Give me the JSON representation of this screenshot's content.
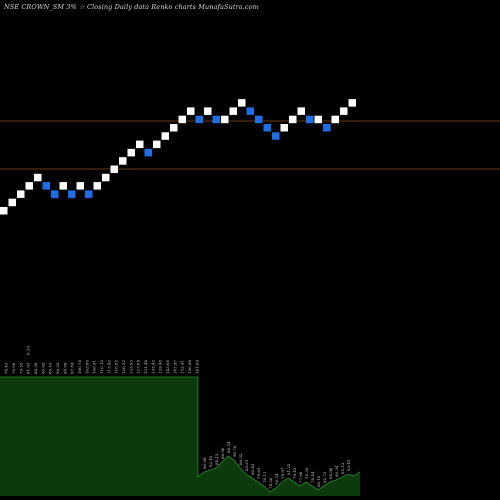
{
  "chart_data": [
    {
      "type": "renko",
      "title": "NSE CROWN_SM 3% ☆ Closing Daily data  Renko  charts MunafaSutra.com",
      "box_size_percent": 3,
      "reference_lines": [
        {
          "name": "upper",
          "color": "#8a4a12",
          "y_fraction": 0.242
        },
        {
          "name": "lower",
          "color": "#8a4a12",
          "y_fraction": 0.338
        }
      ],
      "bricks": [
        {
          "i": 0,
          "level": 0,
          "dir": "up"
        },
        {
          "i": 1,
          "level": 1,
          "dir": "up"
        },
        {
          "i": 2,
          "level": 2,
          "dir": "up"
        },
        {
          "i": 3,
          "level": 3,
          "dir": "up"
        },
        {
          "i": 4,
          "level": 4,
          "dir": "up"
        },
        {
          "i": 5,
          "level": 3,
          "dir": "down"
        },
        {
          "i": 6,
          "level": 2,
          "dir": "down"
        },
        {
          "i": 7,
          "level": 3,
          "dir": "up"
        },
        {
          "i": 8,
          "level": 2,
          "dir": "down"
        },
        {
          "i": 9,
          "level": 3,
          "dir": "up"
        },
        {
          "i": 10,
          "level": 2,
          "dir": "down"
        },
        {
          "i": 11,
          "level": 3,
          "dir": "up"
        },
        {
          "i": 12,
          "level": 4,
          "dir": "up"
        },
        {
          "i": 13,
          "level": 5,
          "dir": "up"
        },
        {
          "i": 14,
          "level": 6,
          "dir": "up"
        },
        {
          "i": 15,
          "level": 7,
          "dir": "up"
        },
        {
          "i": 16,
          "level": 8,
          "dir": "up"
        },
        {
          "i": 17,
          "level": 7,
          "dir": "down"
        },
        {
          "i": 18,
          "level": 8,
          "dir": "up"
        },
        {
          "i": 19,
          "level": 9,
          "dir": "up"
        },
        {
          "i": 20,
          "level": 10,
          "dir": "up"
        },
        {
          "i": 21,
          "level": 11,
          "dir": "up"
        },
        {
          "i": 22,
          "level": 12,
          "dir": "up"
        },
        {
          "i": 23,
          "level": 11,
          "dir": "down"
        },
        {
          "i": 24,
          "level": 12,
          "dir": "up"
        },
        {
          "i": 25,
          "level": 11,
          "dir": "down"
        },
        {
          "i": 26,
          "level": 11,
          "dir": "up"
        },
        {
          "i": 27,
          "level": 12,
          "dir": "up"
        },
        {
          "i": 28,
          "level": 13,
          "dir": "up"
        },
        {
          "i": 29,
          "level": 12,
          "dir": "down"
        },
        {
          "i": 30,
          "level": 11,
          "dir": "down"
        },
        {
          "i": 31,
          "level": 10,
          "dir": "down"
        },
        {
          "i": 32,
          "level": 9,
          "dir": "down"
        },
        {
          "i": 33,
          "level": 10,
          "dir": "up"
        },
        {
          "i": 34,
          "level": 11,
          "dir": "up"
        },
        {
          "i": 35,
          "level": 12,
          "dir": "up"
        },
        {
          "i": 36,
          "level": 11,
          "dir": "down"
        },
        {
          "i": 37,
          "level": 11,
          "dir": "up"
        },
        {
          "i": 38,
          "level": 10,
          "dir": "down"
        },
        {
          "i": 39,
          "level": 11,
          "dir": "up"
        },
        {
          "i": 40,
          "level": 12,
          "dir": "up"
        },
        {
          "i": 41,
          "level": 13,
          "dir": "up"
        }
      ],
      "volume": {
        "fill_color": "#0c3a0c",
        "line_color": "#2a8a2a",
        "plateau_labels": [
          "74.43",
          "76.66",
          "79.55",
          "81.93",
          "84.39",
          "86.92",
          "89.53",
          "92.22",
          "94.99",
          "97.84",
          "100.78",
          "103.80",
          "106.91",
          "110.12",
          "113.42",
          "116.82",
          "120.32",
          "123.93",
          "127.65",
          "131.48",
          "135.42",
          "139.48",
          "143.66",
          "147.97",
          "152.41",
          "156.98",
          "161.69"
        ],
        "tall_label": "6.19",
        "tail_labels": [
          "80.98",
          "82.45",
          "84.12",
          "86.90",
          "88.54",
          "90.76",
          "86.32",
          "83.61",
          "80.43",
          "78.65",
          "76.11",
          "74.20",
          "76.54",
          "78.97",
          "81.22",
          "79.45",
          "77.86",
          "76.32",
          "78.44",
          "80.10",
          "82.73",
          "84.96",
          "86.34",
          "85.12",
          "83.45"
        ]
      },
      "colors": {
        "up_brick": "#ffffff",
        "down_brick": "#1e6fe6",
        "background": "#000000"
      }
    }
  ]
}
